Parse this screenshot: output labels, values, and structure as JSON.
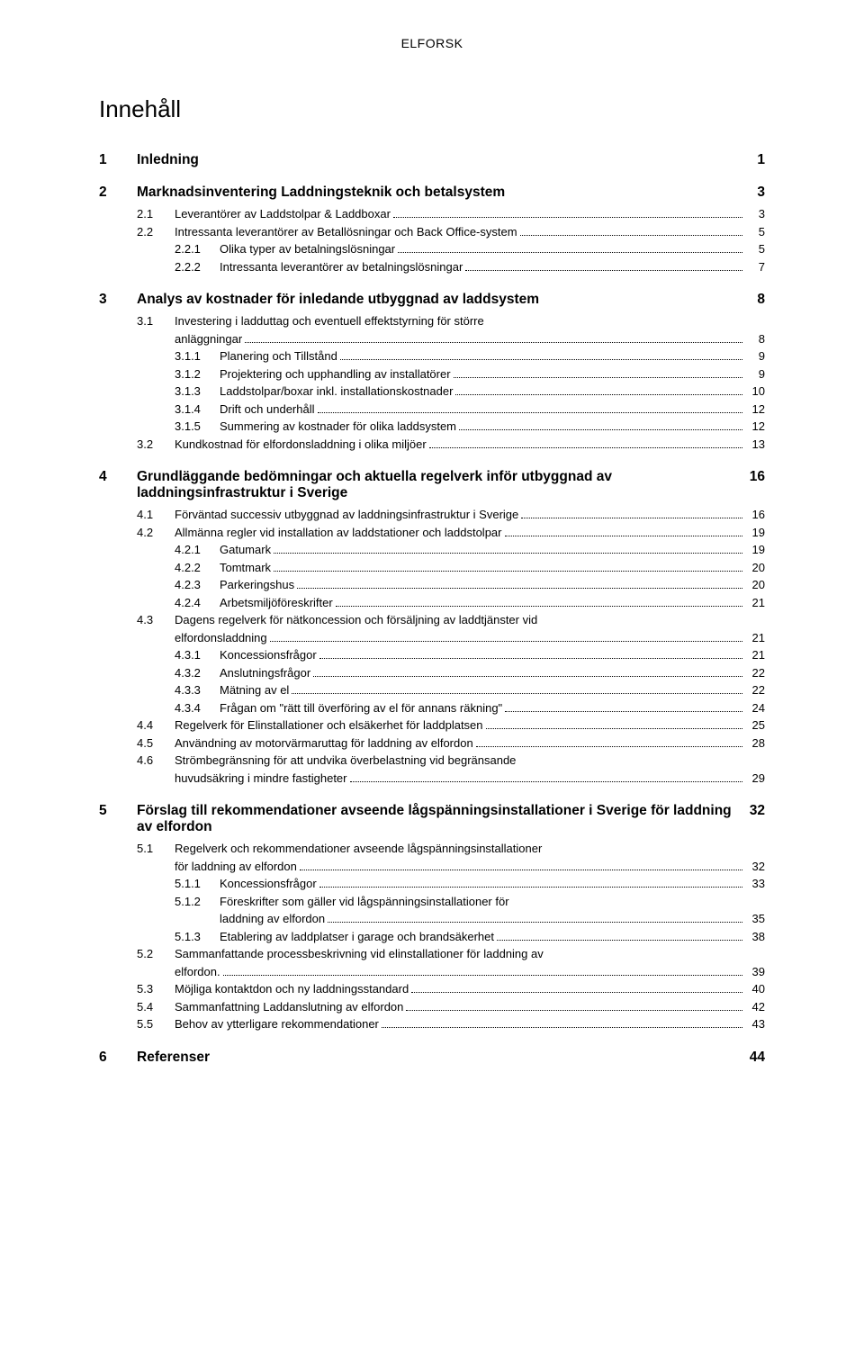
{
  "header": "ELFORSK",
  "title": "Innehåll",
  "toc": [
    {
      "depth": 1,
      "num": "1",
      "text": "Inledning",
      "page": "1"
    },
    {
      "depth": 1,
      "num": "2",
      "text": "Marknadsinventering Laddningsteknik och betalsystem",
      "page": "3"
    },
    {
      "depth": 2,
      "num": "2.1",
      "text": "Leverantörer av Laddstolpar & Laddboxar",
      "page": "3"
    },
    {
      "depth": 2,
      "num": "2.2",
      "text": "Intressanta leverantörer av Betallösningar och Back Office-system",
      "page": "5"
    },
    {
      "depth": 3,
      "num": "2.2.1",
      "text": "Olika typer av betalningslösningar",
      "page": "5"
    },
    {
      "depth": 3,
      "num": "2.2.2",
      "text": "Intressanta leverantörer av betalningslösningar",
      "page": "7"
    },
    {
      "depth": 1,
      "num": "3",
      "text": "Analys av kostnader för inledande utbyggnad av laddsystem",
      "page": "8"
    },
    {
      "depth": 2,
      "num": "3.1",
      "text": "Investering i ladduttag och eventuell effektstyrning för större\nanläggningar",
      "page": "8"
    },
    {
      "depth": 3,
      "num": "3.1.1",
      "text": "Planering och Tillstånd",
      "page": "9"
    },
    {
      "depth": 3,
      "num": "3.1.2",
      "text": "Projektering och upphandling av installatörer",
      "page": "9"
    },
    {
      "depth": 3,
      "num": "3.1.3",
      "text": "Laddstolpar/boxar inkl. installationskostnader",
      "page": "10"
    },
    {
      "depth": 3,
      "num": "3.1.4",
      "text": "Drift och underhåll",
      "page": "12"
    },
    {
      "depth": 3,
      "num": "3.1.5",
      "text": "Summering av kostnader för olika laddsystem",
      "page": "12"
    },
    {
      "depth": 2,
      "num": "3.2",
      "text": "Kundkostnad för elfordonsladdning i olika miljöer",
      "page": "13"
    },
    {
      "depth": 1,
      "num": "4",
      "text": "Grundläggande bedömningar och aktuella regelverk inför utbyggnad av laddningsinfrastruktur i Sverige",
      "page": "16"
    },
    {
      "depth": 2,
      "num": "4.1",
      "text": "Förväntad successiv utbyggnad av laddningsinfrastruktur i Sverige",
      "page": "16"
    },
    {
      "depth": 2,
      "num": "4.2",
      "text": "Allmänna regler vid installation av laddstationer och laddstolpar",
      "page": "19"
    },
    {
      "depth": 3,
      "num": "4.2.1",
      "text": "Gatumark",
      "page": "19"
    },
    {
      "depth": 3,
      "num": "4.2.2",
      "text": "Tomtmark",
      "page": "20"
    },
    {
      "depth": 3,
      "num": "4.2.3",
      "text": "Parkeringshus",
      "page": "20"
    },
    {
      "depth": 3,
      "num": "4.2.4",
      "text": "Arbetsmiljöföreskrifter",
      "page": "21"
    },
    {
      "depth": 2,
      "num": "4.3",
      "text": "Dagens regelverk för nätkoncession och försäljning av laddtjänster vid\nelfordonsladdning",
      "page": "21"
    },
    {
      "depth": 3,
      "num": "4.3.1",
      "text": "Koncessionsfrågor",
      "page": "21"
    },
    {
      "depth": 3,
      "num": "4.3.2",
      "text": "Anslutningsfrågor",
      "page": "22"
    },
    {
      "depth": 3,
      "num": "4.3.3",
      "text": "Mätning av el",
      "page": "22"
    },
    {
      "depth": 3,
      "num": "4.3.4",
      "text": "Frågan om \"rätt till överföring av el för annans räkning\"",
      "page": "24"
    },
    {
      "depth": 2,
      "num": "4.4",
      "text": "Regelverk för Elinstallationer och elsäkerhet för laddplatsen",
      "page": "25"
    },
    {
      "depth": 2,
      "num": "4.5",
      "text": "Användning av motorvärmaruttag för laddning av elfordon",
      "page": "28"
    },
    {
      "depth": 2,
      "num": "4.6",
      "text": "Strömbegränsning för att undvika överbelastning vid begränsande\nhuvudsäkring i mindre fastigheter",
      "page": "29"
    },
    {
      "depth": 1,
      "num": "5",
      "text": "Förslag till rekommendationer avseende lågspänningsinstallationer i Sverige för laddning av elfordon",
      "page": "32"
    },
    {
      "depth": 2,
      "num": "5.1",
      "text": "Regelverk och rekommendationer avseende lågspänningsinstallationer\nför laddning av elfordon",
      "page": "32"
    },
    {
      "depth": 3,
      "num": "5.1.1",
      "text": "Koncessionsfrågor",
      "page": "33"
    },
    {
      "depth": 3,
      "num": "5.1.2",
      "text": "Föreskrifter som gäller vid lågspänningsinstallationer för\nladdning av elfordon",
      "page": "35"
    },
    {
      "depth": 3,
      "num": "5.1.3",
      "text": "Etablering av laddplatser i garage och brandsäkerhet",
      "page": "38"
    },
    {
      "depth": 2,
      "num": "5.2",
      "text": "Sammanfattande processbeskrivning vid elinstallationer för laddning av\nelfordon.",
      "page": "39"
    },
    {
      "depth": 2,
      "num": "5.3",
      "text": "Möjliga kontaktdon och ny laddningsstandard",
      "page": "40"
    },
    {
      "depth": 2,
      "num": "5.4",
      "text": "Sammanfattning Laddanslutning av elfordon",
      "page": "42"
    },
    {
      "depth": 2,
      "num": "5.5",
      "text": "Behov av ytterligare rekommendationer",
      "page": "43"
    },
    {
      "depth": 1,
      "num": "6",
      "text": "Referenser",
      "page": "44"
    }
  ]
}
